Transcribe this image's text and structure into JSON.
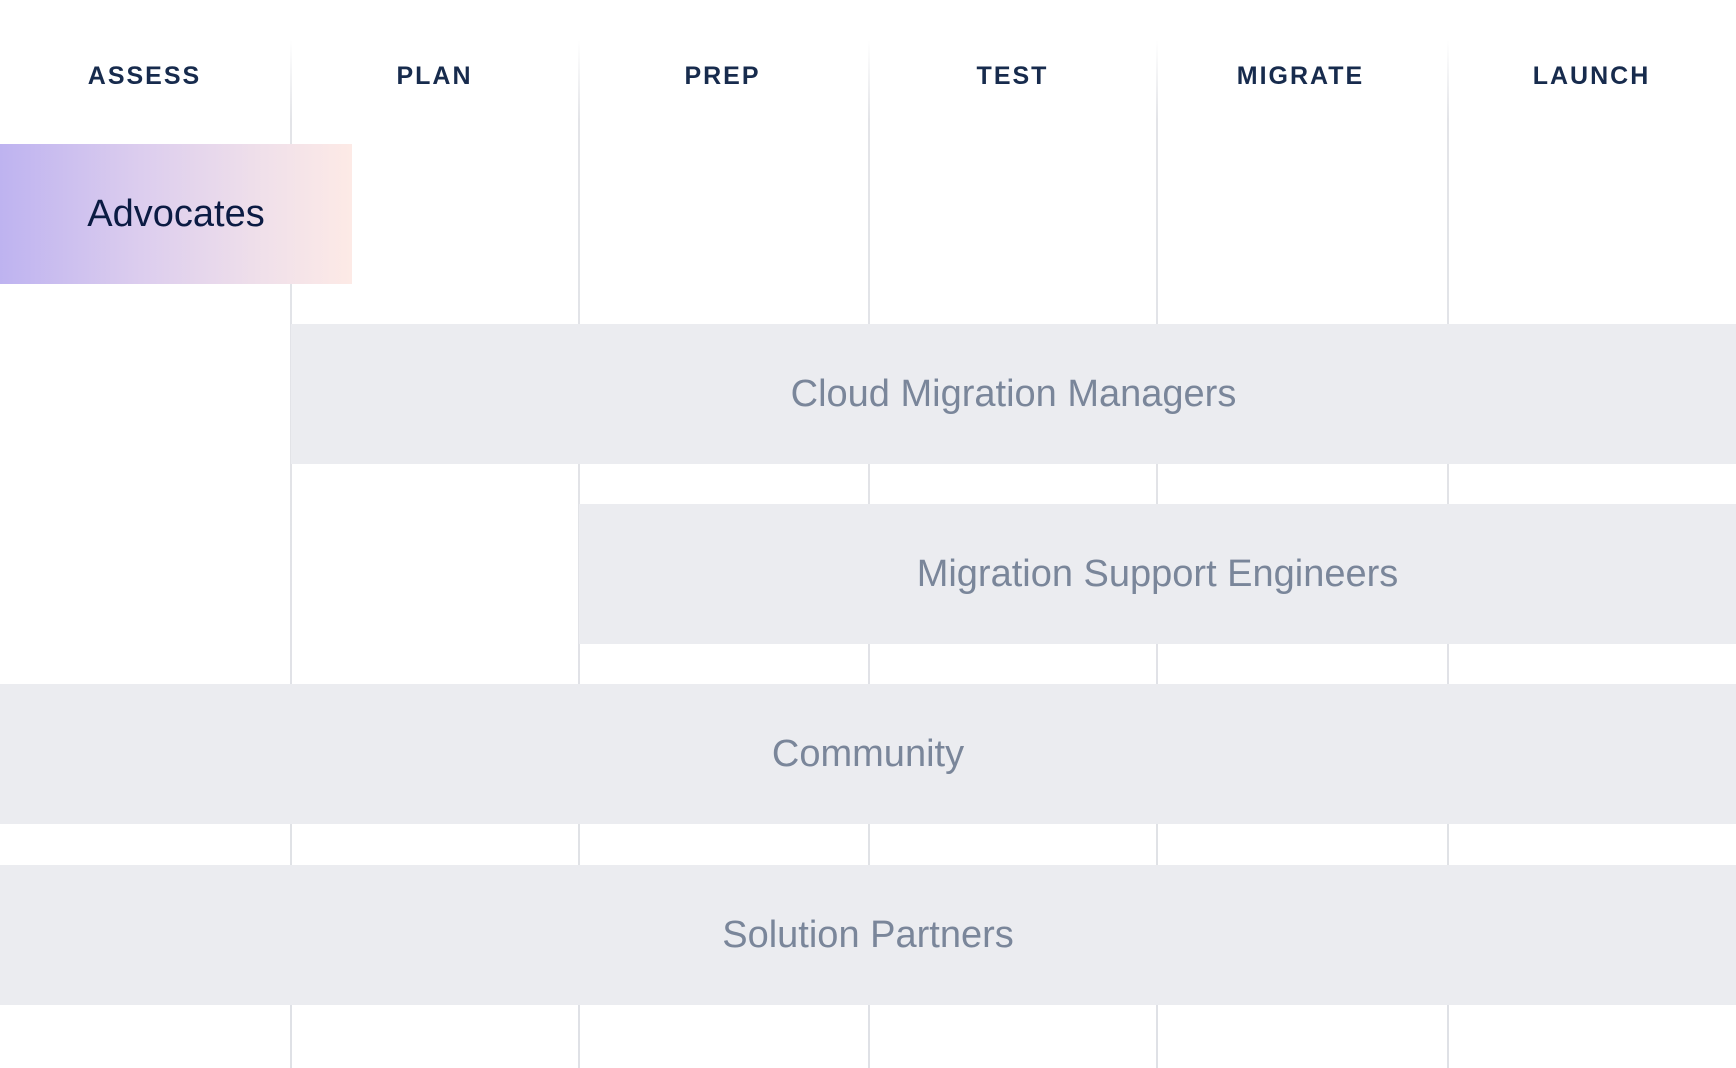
{
  "phases": [
    "ASSESS",
    "PLAN",
    "PREP",
    "TEST",
    "MIGRATE",
    "LAUNCH"
  ],
  "rows": [
    {
      "label": "Advocates",
      "start_phase": "ASSESS",
      "end_phase": "ASSESS",
      "highlighted": true
    },
    {
      "label": "Cloud Migration Managers",
      "start_phase": "PLAN",
      "end_phase": "LAUNCH"
    },
    {
      "label": "Migration Support Engineers",
      "start_phase": "PREP",
      "end_phase": "LAUNCH"
    },
    {
      "label": "Community",
      "start_phase": "ASSESS",
      "end_phase": "LAUNCH"
    },
    {
      "label": "Solution Partners",
      "start_phase": "ASSESS",
      "end_phase": "LAUNCH"
    }
  ],
  "colors": {
    "heading": "#172B4D",
    "band": "#EBECF0",
    "band_text": "#7A869A",
    "highlight_gradient": [
      "#BEB3F0",
      "#FDEAE6"
    ]
  }
}
